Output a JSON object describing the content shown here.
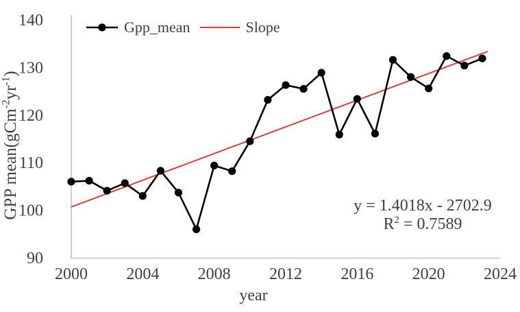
{
  "legend": {
    "series_label": "Gpp_mean",
    "trend_label": "Slope"
  },
  "annotation": {
    "equation": "y = 1.4018x - 2702.9",
    "r2_prefix": "R",
    "r2_sup": "2",
    "r2_rest": " = 0.7589"
  },
  "axes": {
    "xlabel": "year",
    "ylabel_p1": "GPP mean(gCm",
    "ylabel_sup1": "-2",
    "ylabel_p2": "yr",
    "ylabel_sup2": "-1",
    "ylabel_p3": ")",
    "x_ticks": [
      2000,
      2004,
      2008,
      2012,
      2016,
      2020,
      2024
    ],
    "y_ticks": [
      90,
      100,
      110,
      120,
      130,
      140
    ]
  },
  "chart_data": {
    "type": "line",
    "title": "",
    "xlabel": "year",
    "ylabel": "GPP mean(gCm-2yr-1)",
    "xlim": [
      2000,
      2024
    ],
    "ylim": [
      90,
      140
    ],
    "grid": false,
    "legend_position": "top-left-inside",
    "x": [
      2000,
      2001,
      2002,
      2003,
      2004,
      2005,
      2006,
      2007,
      2008,
      2009,
      2010,
      2011,
      2012,
      2013,
      2014,
      2015,
      2016,
      2017,
      2018,
      2019,
      2020,
      2021,
      2022,
      2023
    ],
    "series": [
      {
        "name": "Gpp_mean",
        "values": [
          106.0,
          106.2,
          104.1,
          105.7,
          103.0,
          108.3,
          103.7,
          96.0,
          109.4,
          108.2,
          114.5,
          123.2,
          126.3,
          125.5,
          128.9,
          115.9,
          123.4,
          116.1,
          131.6,
          128.0,
          125.6,
          132.4,
          130.4,
          131.9
        ]
      }
    ],
    "trend": {
      "name": "Slope",
      "slope": 1.4018,
      "intercept": -2702.9,
      "x_start": 2000,
      "x_end": 2023.3,
      "r_squared": 0.7589
    },
    "colors": {
      "series": "#000000",
      "trend": "#e03c36",
      "axis": "#bfbfbf",
      "text": "#404040"
    }
  }
}
